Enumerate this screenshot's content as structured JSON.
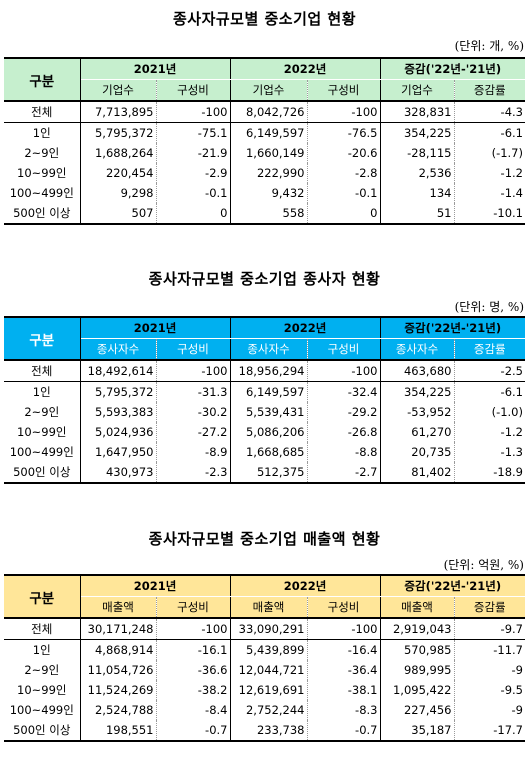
{
  "tables": [
    {
      "title": "종사자규모별 중소기업 현황",
      "unit": "(단위: 개, %)",
      "header": {
        "group_label": "구분",
        "years": [
          "2021년",
          "2022년",
          "증감('22년-'21년)"
        ],
        "sub": [
          "기업수",
          "구성비",
          "기업수",
          "구성비",
          "기업수",
          "증감률"
        ]
      },
      "rows": [
        {
          "label": "전체",
          "values": [
            "7,713,895",
            "-100",
            "8,042,726",
            "-100",
            "328,831",
            "-4.3"
          ]
        },
        {
          "label": "1인",
          "values": [
            "5,795,372",
            "-75.1",
            "6,149,597",
            "-76.5",
            "354,225",
            "-6.1"
          ]
        },
        {
          "label": "2~9인",
          "values": [
            "1,688,264",
            "-21.9",
            "1,660,149",
            "-20.6",
            "-28,115",
            "(-1.7)"
          ]
        },
        {
          "label": "10~99인",
          "values": [
            "220,454",
            "-2.9",
            "222,990",
            "-2.8",
            "2,536",
            "-1.2"
          ]
        },
        {
          "label": "100~499인",
          "values": [
            "9,298",
            "-0.1",
            "9,432",
            "-0.1",
            "134",
            "-1.4"
          ]
        },
        {
          "label": "500인 이상",
          "values": [
            "507",
            "0",
            "558",
            "0",
            "51",
            "-10.1"
          ]
        }
      ]
    },
    {
      "title": "종사자규모별 중소기업 종사자 현황",
      "unit": "(단위: 명, %)",
      "header": {
        "group_label": "구분",
        "years": [
          "2021년",
          "2022년",
          "증감('22년-'21년)"
        ],
        "sub": [
          "종사자수",
          "구성비",
          "종사자수",
          "구성비",
          "종사자수",
          "증감률"
        ]
      },
      "rows": [
        {
          "label": "전체",
          "values": [
            "18,492,614",
            "-100",
            "18,956,294",
            "-100",
            "463,680",
            "-2.5"
          ]
        },
        {
          "label": "1인",
          "values": [
            "5,795,372",
            "-31.3",
            "6,149,597",
            "-32.4",
            "354,225",
            "-6.1"
          ]
        },
        {
          "label": "2~9인",
          "values": [
            "5,593,383",
            "-30.2",
            "5,539,431",
            "-29.2",
            "-53,952",
            "(-1.0)"
          ]
        },
        {
          "label": "10~99인",
          "values": [
            "5,024,936",
            "-27.2",
            "5,086,206",
            "-26.8",
            "61,270",
            "-1.2"
          ]
        },
        {
          "label": "100~499인",
          "values": [
            "1,647,950",
            "-8.9",
            "1,668,685",
            "-8.8",
            "20,735",
            "-1.3"
          ]
        },
        {
          "label": "500인 이상",
          "values": [
            "430,973",
            "-2.3",
            "512,375",
            "-2.7",
            "81,402",
            "-18.9"
          ]
        }
      ]
    },
    {
      "title": "종사자규모별 중소기업 매출액 현황",
      "unit": "(단위: 억원, %)",
      "header": {
        "group_label": "구분",
        "years": [
          "2021년",
          "2022년",
          "증감('22년-'21년)"
        ],
        "sub": [
          "매출액",
          "구성비",
          "매출액",
          "구성비",
          "매출액",
          "증감률"
        ]
      },
      "rows": [
        {
          "label": "전체",
          "values": [
            "30,171,248",
            "-100",
            "33,090,291",
            "-100",
            "2,919,043",
            "-9.7"
          ]
        },
        {
          "label": "1인",
          "values": [
            "4,868,914",
            "-16.1",
            "5,439,899",
            "-16.4",
            "570,985",
            "-11.7"
          ]
        },
        {
          "label": "2~9인",
          "values": [
            "11,054,726",
            "-36.6",
            "12,044,721",
            "-36.4",
            "989,995",
            "-9"
          ]
        },
        {
          "label": "10~99인",
          "values": [
            "11,524,269",
            "-38.2",
            "12,619,691",
            "-38.1",
            "1,095,422",
            "-9.5"
          ]
        },
        {
          "label": "100~499인",
          "values": [
            "2,524,788",
            "-8.4",
            "2,752,244",
            "-8.3",
            "227,456",
            "-9"
          ]
        },
        {
          "label": "500인 이상",
          "values": [
            "198,551",
            "-0.7",
            "233,738",
            "-0.7",
            "35,187",
            "-17.7"
          ]
        }
      ]
    }
  ],
  "theme_colors": {
    "table1_header": "#c6efce",
    "table2_header": "#00b0f0",
    "table3_header": "#ffe699"
  }
}
